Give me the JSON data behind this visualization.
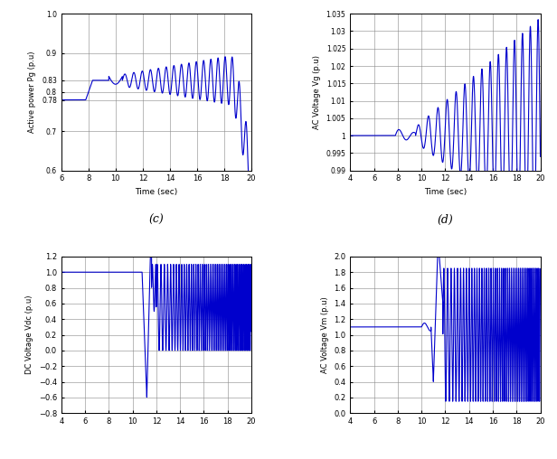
{
  "line_color": "#0000CC",
  "line_width": 0.8,
  "background_color": "#ffffff",
  "grid_color": "#888888",
  "plot_c": {
    "xlabel": "Time (sec)",
    "ylabel": "Active power Pg (p.u)",
    "xlim": [
      6,
      20
    ],
    "ylim": [
      0.6,
      1.0
    ],
    "yticks": [
      0.6,
      0.7,
      0.78,
      0.8,
      0.83,
      0.9,
      1.0
    ],
    "xticks": [
      6,
      8,
      10,
      12,
      14,
      16,
      18,
      20
    ],
    "label": "(c)"
  },
  "plot_d": {
    "xlabel": "Time (sec)",
    "ylabel": "AC Voltage Vg (p.u)",
    "xlim": [
      4,
      20
    ],
    "ylim": [
      0.99,
      1.035
    ],
    "yticks": [
      0.99,
      0.995,
      1.0,
      1.005,
      1.01,
      1.015,
      1.02,
      1.025,
      1.03,
      1.035
    ],
    "xticks": [
      4,
      6,
      8,
      10,
      12,
      14,
      16,
      18,
      20
    ],
    "label": "(d)"
  },
  "plot_e": {
    "xlabel": "",
    "ylabel": "DC Voltage Vdc (p.u)",
    "xlim": [
      4,
      20
    ],
    "ylim": [
      -0.8,
      1.2
    ],
    "yticks": [
      -0.8,
      -0.6,
      -0.4,
      -0.2,
      0.0,
      0.2,
      0.4,
      0.6,
      0.8,
      1.0,
      1.2
    ],
    "xticks": [
      4,
      6,
      8,
      10,
      12,
      14,
      16,
      18,
      20
    ],
    "label": ""
  },
  "plot_f": {
    "xlabel": "",
    "ylabel": "AC Voltage Vm (p.u)",
    "xlim": [
      4,
      20
    ],
    "ylim": [
      0.0,
      2.0
    ],
    "yticks": [
      0.0,
      0.2,
      0.4,
      0.6,
      0.8,
      1.0,
      1.2,
      1.4,
      1.6,
      1.8,
      2.0
    ],
    "xticks": [
      4,
      6,
      8,
      10,
      12,
      14,
      16,
      18,
      20
    ],
    "label": ""
  }
}
